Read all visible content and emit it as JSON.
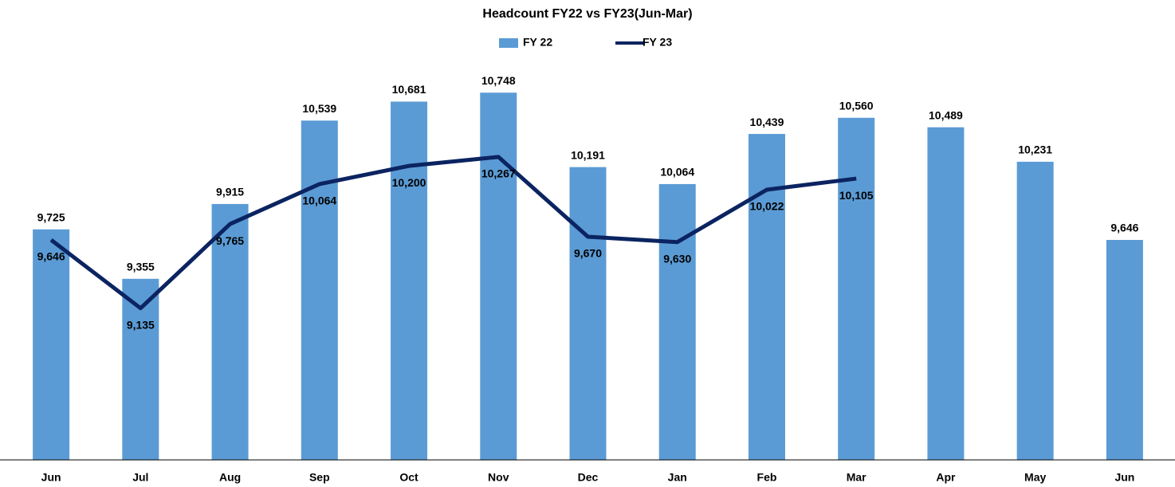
{
  "chart_data": {
    "type": "bar",
    "title": "Headcount FY22 vs FY23(Jun-Mar)",
    "categories": [
      "Jun",
      "Jul",
      "Aug",
      "Sep",
      "Oct",
      "Nov",
      "Dec",
      "Jan",
      "Feb",
      "Mar",
      "Apr",
      "May",
      "Jun"
    ],
    "series": [
      {
        "name": "FY 22",
        "type": "bar",
        "color": "#5b9bd5",
        "values": [
          9725,
          9355,
          9915,
          10539,
          10681,
          10748,
          10191,
          10064,
          10439,
          10560,
          10489,
          10231,
          9646
        ],
        "value_labels": [
          "9,725",
          "9,355",
          "9,915",
          "10,539",
          "10,681",
          "10,748",
          "10,191",
          "10,064",
          "10,439",
          "10,560",
          "10,489",
          "10,231",
          "9,646"
        ]
      },
      {
        "name": "FY 23",
        "type": "line",
        "color": "#0b2461",
        "values": [
          9646,
          9135,
          9765,
          10064,
          10200,
          10267,
          9670,
          9630,
          10022,
          10105,
          null,
          null,
          null
        ],
        "value_labels": [
          "9,646",
          "9,135",
          "9,765",
          "10,064",
          "10,200",
          "10,267",
          "9,670",
          "9,630",
          "10,022",
          "10,105",
          null,
          null,
          null
        ]
      }
    ],
    "ylim": [
      8000,
      11000
    ],
    "legend": "top"
  }
}
